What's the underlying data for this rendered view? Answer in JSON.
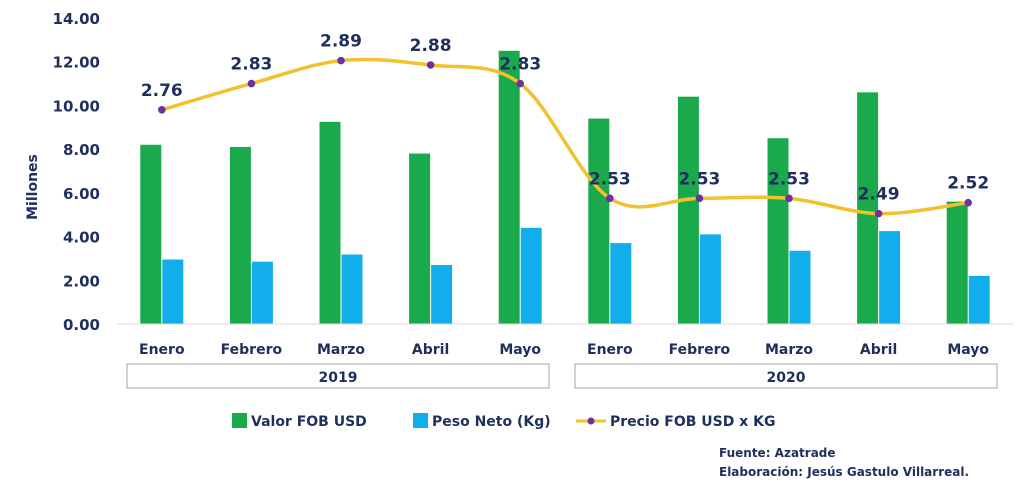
{
  "chart_data": {
    "type": "bar",
    "ylabel": "Millones",
    "ylim": [
      0,
      14
    ],
    "yticks": [
      "0.00",
      "2.00",
      "4.00",
      "6.00",
      "8.00",
      "10.00",
      "12.00",
      "14.00"
    ],
    "categories": [
      "Enero",
      "Febrero",
      "Marzo",
      "Abril",
      "Mayo",
      "Enero",
      "Febrero",
      "Marzo",
      "Abril",
      "Mayo"
    ],
    "groups": [
      {
        "label": "2019",
        "count": 5
      },
      {
        "label": "2020",
        "count": 5
      }
    ],
    "series": [
      {
        "name": "Valor FOB USD",
        "kind": "bar",
        "color": "#1aaa4b",
        "values": [
          8.2,
          8.1,
          9.25,
          7.8,
          12.5,
          9.4,
          10.4,
          8.5,
          10.6,
          5.6
        ]
      },
      {
        "name": "Peso Neto (Kg)",
        "kind": "bar",
        "color": "#12adeb",
        "values": [
          2.95,
          2.85,
          3.18,
          2.7,
          4.4,
          3.7,
          4.1,
          3.35,
          4.25,
          2.2
        ]
      },
      {
        "name": "Precio FOB USD x KG",
        "kind": "line",
        "color": "#f2c12e",
        "marker_color": "#7030a0",
        "plotted_values": [
          9.8,
          11.0,
          12.05,
          11.85,
          11.0,
          5.75,
          5.75,
          5.75,
          5.05,
          5.55
        ],
        "labels": [
          "2.76",
          "2.83",
          "2.89",
          "2.88",
          "2.83",
          "2.53",
          "2.53",
          "2.53",
          "2.49",
          "2.52"
        ]
      }
    ],
    "legend_position": "bottom",
    "grid": false
  },
  "footer": {
    "source": "Fuente: Azatrade",
    "author": "Elaboración: Jesús Gastulo Villarreal."
  }
}
